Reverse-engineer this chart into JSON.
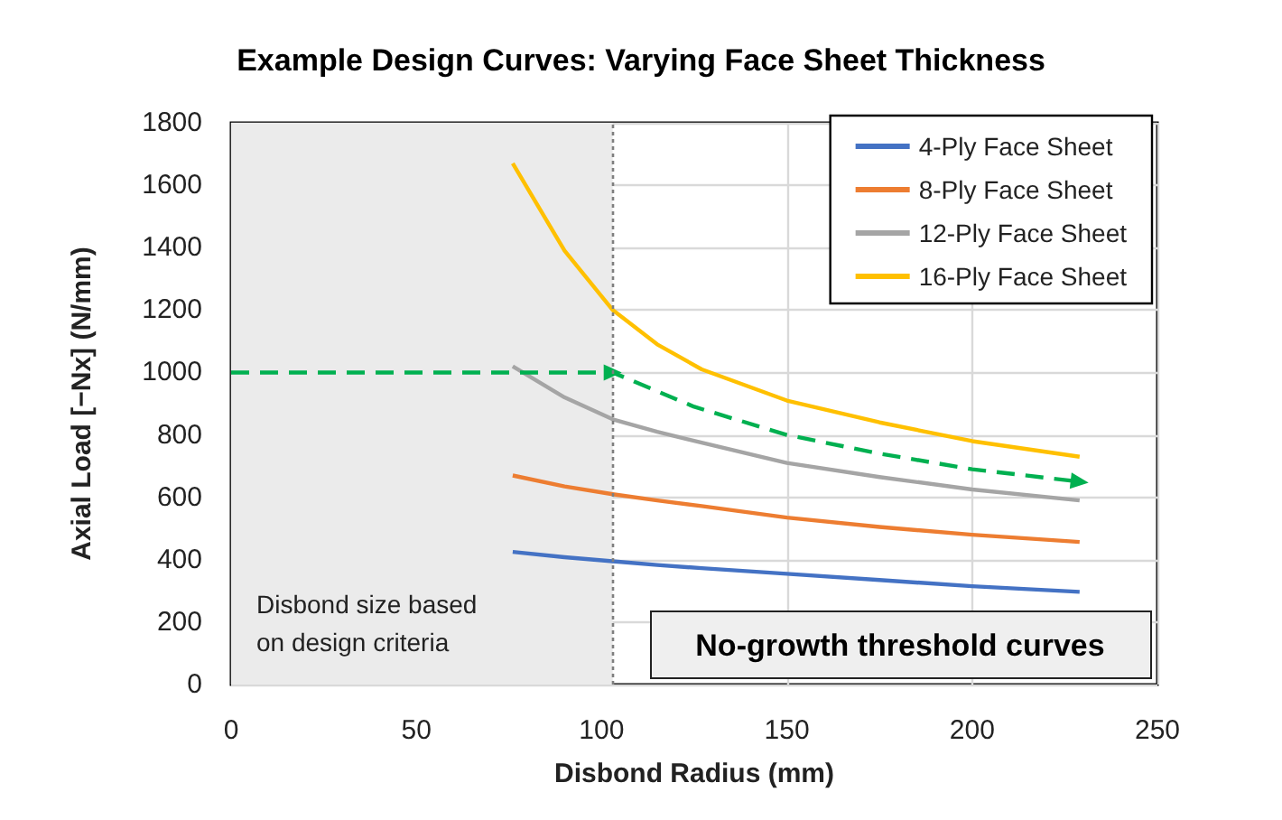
{
  "chart_data": {
    "type": "line",
    "title": "Example Design Curves: Varying Face Sheet Thickness",
    "xlabel": "Disbond Radius (mm)",
    "ylabel": "Axial Load [−Nx] (N/mm)",
    "x": [
      76,
      90,
      103,
      115,
      127,
      150,
      175,
      200,
      229
    ],
    "series": [
      {
        "name": "4-Ply Face Sheet",
        "color": "#4472c4",
        "values": [
          425,
          408,
          395,
          383,
          373,
          355,
          335,
          315,
          297
        ]
      },
      {
        "name": "8-Ply Face Sheet",
        "color": "#ed7d31",
        "values": [
          670,
          635,
          610,
          590,
          572,
          535,
          505,
          480,
          457
        ]
      },
      {
        "name": "12-Ply Face Sheet",
        "color": "#a5a5a5",
        "values": [
          1020,
          920,
          850,
          810,
          775,
          710,
          665,
          625,
          590
        ]
      },
      {
        "name": "16-Ply Face Sheet",
        "color": "#ffc000",
        "values": [
          1670,
          1390,
          1200,
          1090,
          1010,
          910,
          840,
          780,
          730
        ]
      },
      {
        "color": "#00b050",
        "line_style": "dashed",
        "x": [
          0,
          103,
          125,
          150,
          175,
          200,
          229
        ],
        "values": [
          1000,
          1000,
          890,
          800,
          740,
          690,
          650
        ]
      }
    ],
    "xlim": [
      0,
      250
    ],
    "xticks": [
      0,
      50,
      100,
      150,
      200,
      250
    ],
    "ylim": [
      0,
      1800
    ],
    "yticks": [
      0,
      200,
      400,
      600,
      800,
      1000,
      1200,
      1400,
      1600,
      1800
    ],
    "grid": true,
    "legend": "top right",
    "marker": "none",
    "line_style": "solid",
    "bands": [
      {
        "axis": "x",
        "from": 0,
        "to": 103,
        "color": "#ebebeb"
      }
    ],
    "ref_lines": [
      {
        "axis": "x",
        "value": 103,
        "color": "#7f7f7f",
        "line_style": "dotted"
      }
    ],
    "annotations": [
      "Disbond size based\non design criteria",
      "No-growth threshold curves"
    ]
  }
}
